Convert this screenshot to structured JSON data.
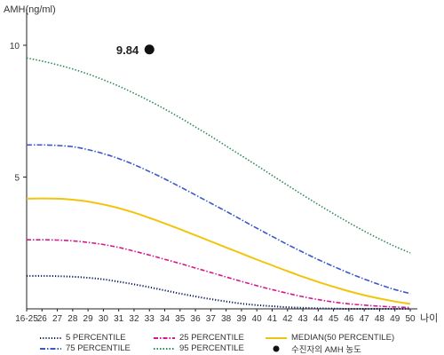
{
  "chart_data": {
    "type": "line",
    "ylabel": "AMH(ng/ml)",
    "xlabel": "나이",
    "ylim": [
      0,
      11.5
    ],
    "yticks": [
      5,
      10
    ],
    "categories": [
      "16-25",
      "26",
      "27",
      "28",
      "29",
      "30",
      "31",
      "32",
      "33",
      "34",
      "35",
      "36",
      "37",
      "38",
      "39",
      "40",
      "41",
      "42",
      "43",
      "44",
      "45",
      "46",
      "47",
      "48",
      "49",
      "50"
    ],
    "series": [
      {
        "name": "5 PERCENTILE",
        "color": "#0a1a5c",
        "dash": "1.2,2",
        "values": [
          1.25,
          1.25,
          1.24,
          1.22,
          1.18,
          1.12,
          1.03,
          0.93,
          0.82,
          0.7,
          0.58,
          0.47,
          0.37,
          0.28,
          0.2,
          0.14,
          0.1,
          0.06,
          0.04,
          0.02,
          0.01,
          0.0,
          0.0,
          0.0,
          0.0,
          0.0
        ]
      },
      {
        "name": "25 PERCENTILE",
        "color": "#d6188c",
        "dash": "5,2,1.5,2",
        "values": [
          2.62,
          2.62,
          2.61,
          2.58,
          2.52,
          2.44,
          2.33,
          2.19,
          2.04,
          1.88,
          1.72,
          1.55,
          1.38,
          1.21,
          1.04,
          0.88,
          0.73,
          0.59,
          0.46,
          0.35,
          0.26,
          0.19,
          0.14,
          0.1,
          0.07,
          0.05
        ]
      },
      {
        "name": "MEDIAN(50 PERCENTILE)",
        "color": "#f2c40c",
        "dash": "",
        "values": [
          4.18,
          4.19,
          4.18,
          4.14,
          4.07,
          3.96,
          3.82,
          3.65,
          3.45,
          3.24,
          3.02,
          2.79,
          2.56,
          2.33,
          2.1,
          1.87,
          1.65,
          1.43,
          1.22,
          1.02,
          0.84,
          0.67,
          0.52,
          0.39,
          0.28,
          0.19
        ]
      },
      {
        "name": "75 PERCENTILE",
        "color": "#3a58c8",
        "dash": "6,2,1.5,2",
        "values": [
          6.22,
          6.22,
          6.2,
          6.15,
          6.04,
          5.89,
          5.7,
          5.47,
          5.21,
          4.93,
          4.63,
          4.32,
          4.01,
          3.7,
          3.38,
          3.06,
          2.75,
          2.44,
          2.15,
          1.87,
          1.61,
          1.36,
          1.13,
          0.92,
          0.73,
          0.58
        ]
      },
      {
        "name": "95 PERCENTILE",
        "color": "#2e8b57",
        "dash": "1.5,2",
        "values": [
          9.52,
          9.4,
          9.26,
          9.1,
          8.91,
          8.69,
          8.45,
          8.18,
          7.89,
          7.58,
          7.25,
          6.9,
          6.55,
          6.18,
          5.81,
          5.44,
          5.06,
          4.69,
          4.32,
          3.96,
          3.61,
          3.27,
          2.95,
          2.65,
          2.37,
          2.12
        ]
      }
    ],
    "point": {
      "name": "수진자의 AMH 농도",
      "category": "33",
      "value": 9.84,
      "label": "9.84",
      "color": "#111111"
    },
    "legend": {
      "placement": "bottom",
      "entries": [
        {
          "label": "5 PERCENTILE",
          "color": "#0a1a5c",
          "dash": "1.2,2",
          "marker": "line"
        },
        {
          "label": "25 PERCENTILE",
          "color": "#d6188c",
          "dash": "5,2,1.5,2",
          "marker": "line"
        },
        {
          "label": "MEDIAN(50 PERCENTILE)",
          "color": "#f2c40c",
          "dash": "",
          "marker": "line"
        },
        {
          "label": "75 PERCENTILE",
          "color": "#3a58c8",
          "dash": "6,2,1.5,2",
          "marker": "line"
        },
        {
          "label": "95 PERCENTILE",
          "color": "#2e8b57",
          "dash": "1.5,2",
          "marker": "line"
        },
        {
          "label": "수진자의 AMH 농도",
          "color": "#111111",
          "dash": "",
          "marker": "dot"
        }
      ]
    },
    "grid": false
  }
}
